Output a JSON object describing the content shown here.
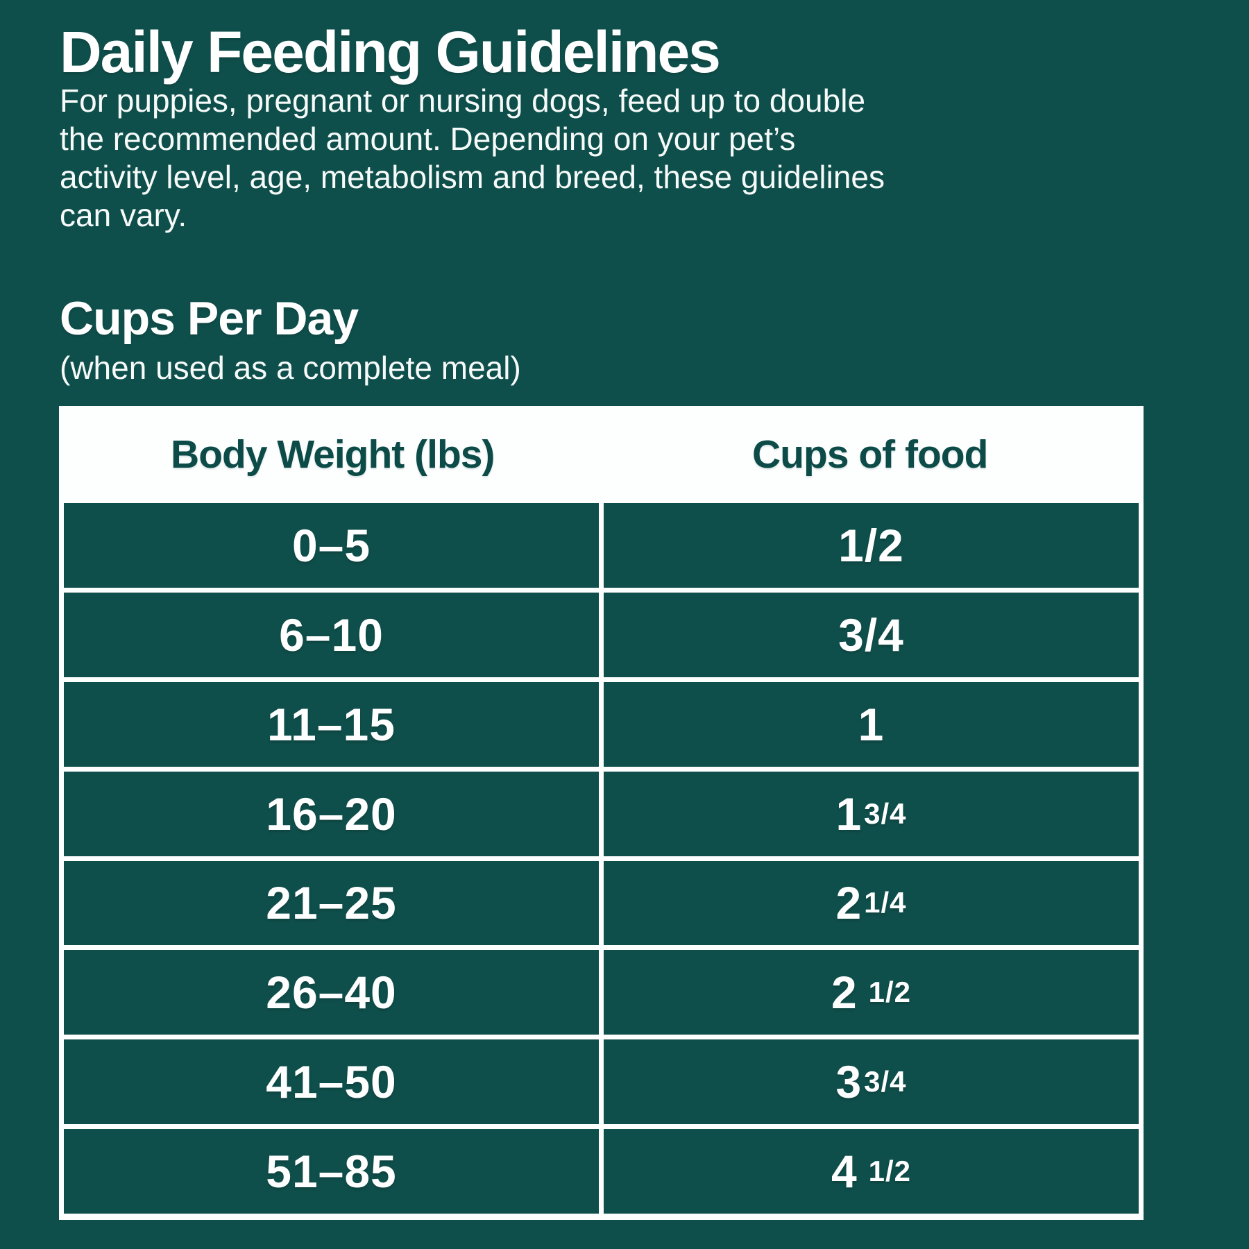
{
  "page": {
    "background_color": "#0F4F4B",
    "text_color": "#FFFFFF",
    "title": "Daily Feeding Guidelines",
    "intro_lines": [
      "For puppies, pregnant or nursing dogs, feed up to double",
      "the recommended amount. Depending on your pet’s",
      "activity level, age, metabolism and breed, these guidelines",
      "can vary."
    ],
    "section_heading": "Cups Per Day",
    "section_subheading": "(when used as a complete meal)"
  },
  "table": {
    "header_background": "#FDFEFE",
    "header_text_color": "#0C4B48",
    "cell_background": "#0F4F4B",
    "gridline_color": "#FDFEFE",
    "columns": [
      "Body Weight (lbs)",
      "Cups of food"
    ],
    "rows": [
      {
        "weight": "0–5",
        "cups": {
          "whole": "",
          "fraction": "1/2",
          "large_fraction": true,
          "gap": false
        }
      },
      {
        "weight": "6–10",
        "cups": {
          "whole": "",
          "fraction": "3/4",
          "large_fraction": true,
          "gap": false
        }
      },
      {
        "weight": "11–15",
        "cups": {
          "whole": "1",
          "fraction": "",
          "large_fraction": false,
          "gap": false
        }
      },
      {
        "weight": "16–20",
        "cups": {
          "whole": "1",
          "fraction": "3/4",
          "large_fraction": false,
          "gap": false
        }
      },
      {
        "weight": "21–25",
        "cups": {
          "whole": "2",
          "fraction": "1/4",
          "large_fraction": false,
          "gap": false
        }
      },
      {
        "weight": "26–40",
        "cups": {
          "whole": "2",
          "fraction": "1/2",
          "large_fraction": false,
          "gap": true
        }
      },
      {
        "weight": "41–50",
        "cups": {
          "whole": "3",
          "fraction": "3/4",
          "large_fraction": false,
          "gap": false
        }
      },
      {
        "weight": "51–85",
        "cups": {
          "whole": "4",
          "fraction": "1/2",
          "large_fraction": false,
          "gap": true
        }
      }
    ]
  }
}
